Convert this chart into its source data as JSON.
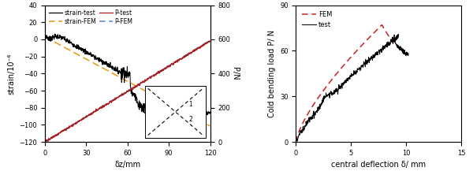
{
  "left": {
    "xlabel": "δz/mm",
    "ylabel_left": "strain/10⁻⁶",
    "ylabel_right": "P/N",
    "xlim": [
      0,
      120
    ],
    "ylim_left": [
      -120,
      40
    ],
    "ylim_right": [
      0,
      800
    ],
    "yticks_left": [
      -120,
      -100,
      -80,
      -60,
      -40,
      -20,
      0,
      20,
      40
    ],
    "yticks_right": [
      0,
      200,
      400,
      600,
      800
    ],
    "xticks": [
      0,
      30,
      60,
      90,
      120
    ],
    "strain_test_color": "#000000",
    "strain_fem_color": "#E8960A",
    "p_test_color": "#AA2020",
    "p_fem_color": "#5580CC"
  },
  "right": {
    "xlabel": "central deflection δ/ mm",
    "ylabel": "Cold bending load P/ N",
    "xlim": [
      0,
      15
    ],
    "ylim": [
      0,
      90
    ],
    "yticks": [
      0,
      30,
      60,
      90
    ],
    "xticks": [
      0,
      5,
      10,
      15
    ],
    "fem_color": "#CC2020",
    "test_color": "#000000"
  }
}
